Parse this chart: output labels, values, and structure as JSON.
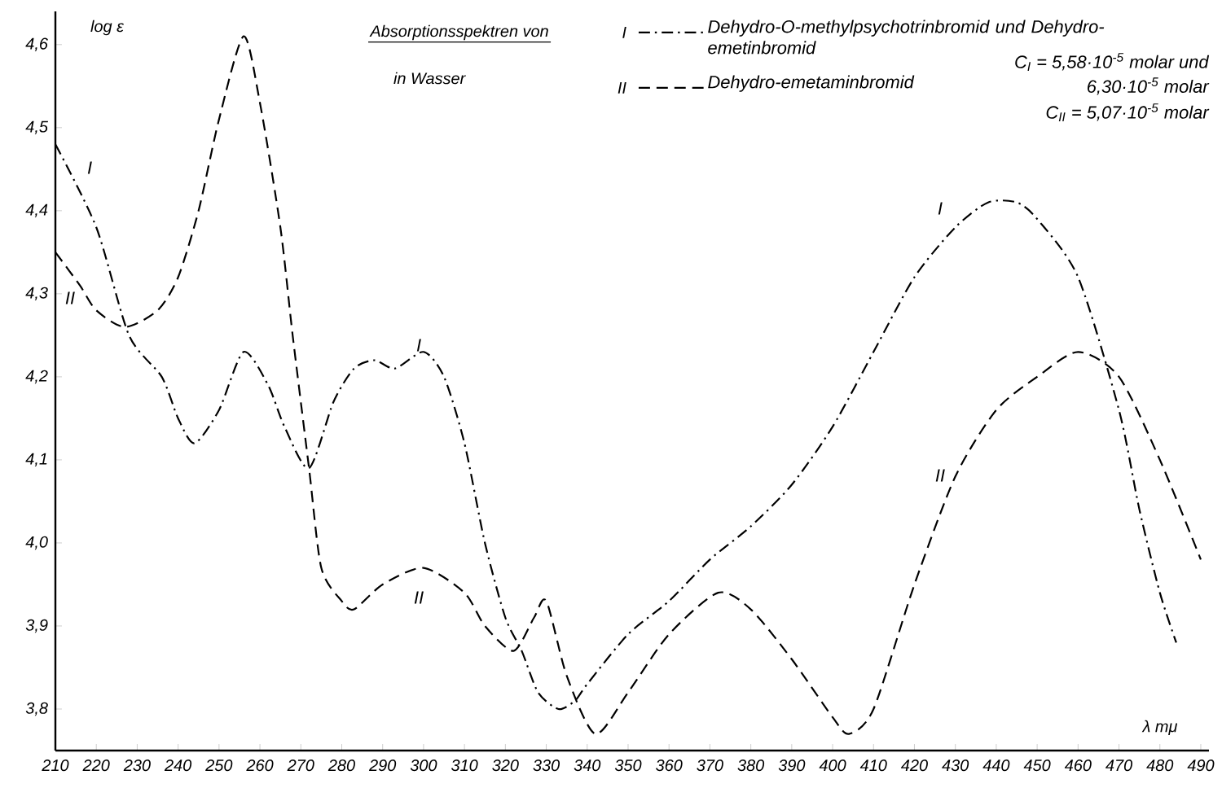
{
  "chart_data": {
    "type": "line",
    "title": "Absorptionsspektren von",
    "subtitle": "in Wasser",
    "xlabel": "λ mμ",
    "ylabel": "log ε",
    "xlim": [
      210,
      492
    ],
    "ylim": [
      3.75,
      4.64
    ],
    "xticks": [
      210,
      220,
      230,
      240,
      250,
      260,
      270,
      280,
      290,
      300,
      310,
      320,
      330,
      340,
      350,
      360,
      370,
      380,
      390,
      400,
      410,
      420,
      430,
      440,
      450,
      460,
      470,
      480,
      490
    ],
    "yticks": [
      {
        "value": 3.8,
        "label": "3,8"
      },
      {
        "value": 3.9,
        "label": "3,9"
      },
      {
        "value": 4.0,
        "label": "4,0"
      },
      {
        "value": 4.1,
        "label": "4,1"
      },
      {
        "value": 4.2,
        "label": "4,2"
      },
      {
        "value": 4.3,
        "label": "4,3"
      },
      {
        "value": 4.4,
        "label": "4,4"
      },
      {
        "value": 4.5,
        "label": "4,5"
      },
      {
        "value": 4.6,
        "label": "4,6"
      }
    ],
    "legend": "top",
    "grid": false,
    "series": [
      {
        "name": "I",
        "color": "#000000",
        "line_style": "dashdot",
        "x": [
          210,
          220,
          228,
          236,
          240,
          244,
          250,
          256,
          262,
          266,
          272,
          278,
          283,
          288,
          293,
          300,
          305,
          310,
          315,
          320,
          324,
          328,
          333,
          337,
          340,
          350,
          360,
          370,
          380,
          390,
          400,
          410,
          420,
          430,
          438,
          445,
          450,
          460,
          470,
          475,
          480,
          484
        ],
        "values": [
          4.48,
          4.38,
          4.25,
          4.2,
          4.15,
          4.12,
          4.16,
          4.23,
          4.19,
          4.14,
          4.09,
          4.17,
          4.21,
          4.22,
          4.21,
          4.23,
          4.2,
          4.12,
          4.0,
          3.91,
          3.87,
          3.82,
          3.8,
          3.81,
          3.83,
          3.89,
          3.93,
          3.98,
          4.02,
          4.07,
          4.14,
          4.23,
          4.32,
          4.38,
          4.41,
          4.41,
          4.39,
          4.32,
          4.16,
          4.04,
          3.94,
          3.88
        ]
      },
      {
        "name": "II",
        "color": "#000000",
        "line_style": "dashed",
        "x": [
          210,
          216,
          220,
          227,
          235,
          240,
          245,
          250,
          256,
          260,
          265,
          268,
          272,
          275,
          280,
          283,
          290,
          300,
          310,
          315,
          322,
          327,
          330,
          335,
          342,
          350,
          360,
          372,
          380,
          390,
          400,
          404,
          410,
          420,
          430,
          440,
          450,
          460,
          470,
          480,
          490
        ],
        "values": [
          4.35,
          4.31,
          4.28,
          4.26,
          4.28,
          4.32,
          4.4,
          4.51,
          4.61,
          4.53,
          4.38,
          4.25,
          4.09,
          3.97,
          3.93,
          3.92,
          3.95,
          3.97,
          3.94,
          3.9,
          3.87,
          3.91,
          3.93,
          3.84,
          3.77,
          3.82,
          3.89,
          3.94,
          3.92,
          3.86,
          3.79,
          3.77,
          3.8,
          3.95,
          4.08,
          4.16,
          4.2,
          4.23,
          4.2,
          4.1,
          3.98
        ]
      }
    ],
    "annotations": [
      "Dehydro-O-methylpsychotrinbromid und Dehydro-emetinbromid",
      "Dehydro-emetaminbromid",
      "C$_{I}$ = 5,58·10$^{-5}$ molar und",
      "6,30·10$^{-5}$ molar",
      "C$_{II}$ = 5,07·10$^{-5}$ molar",
      "I",
      "II",
      "I",
      "II",
      "I",
      "II"
    ]
  }
}
